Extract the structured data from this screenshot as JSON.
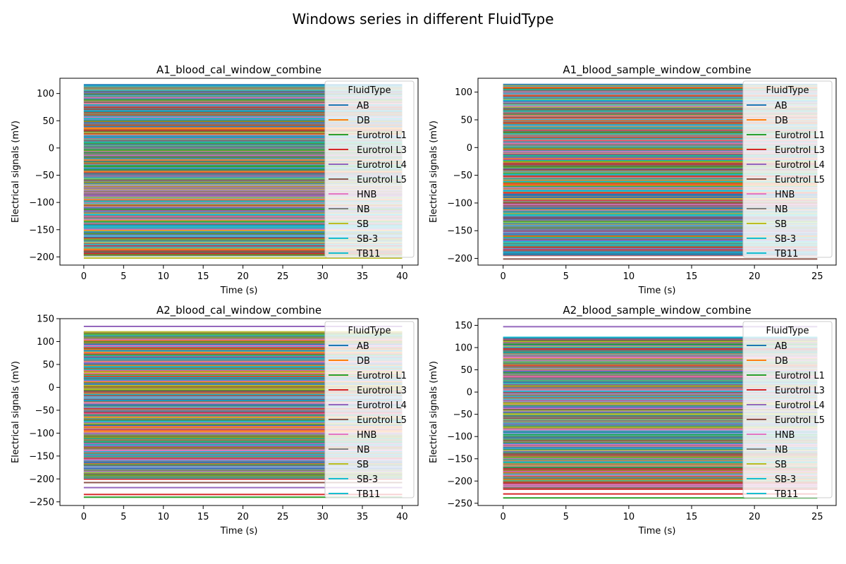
{
  "figure": {
    "suptitle": "Windows series in different FluidType"
  },
  "legend_title": "FluidType",
  "fluid_types": [
    {
      "name": "AB",
      "color": "#1f77b4"
    },
    {
      "name": "DB",
      "color": "#ff7f0e"
    },
    {
      "name": "Eurotrol L1",
      "color": "#2ca02c"
    },
    {
      "name": "Eurotrol L3",
      "color": "#d62728"
    },
    {
      "name": "Eurotrol L4",
      "color": "#9467bd"
    },
    {
      "name": "Eurotrol L5",
      "color": "#8c564b"
    },
    {
      "name": "HNB",
      "color": "#e377c2"
    },
    {
      "name": "NB",
      "color": "#7f7f7f"
    },
    {
      "name": "SB",
      "color": "#bcbd22"
    },
    {
      "name": "SB-3",
      "color": "#17becf"
    },
    {
      "name": "TB11",
      "color": "#17becf"
    }
  ],
  "chart_data": [
    {
      "type": "line",
      "title": "A1_blood_cal_window_combine",
      "xlabel": "Time (s)",
      "ylabel": "Electrical signals (mV)",
      "xlim": [
        -3,
        42
      ],
      "ylim": [
        -215,
        128
      ],
      "xticks": [
        0,
        5,
        10,
        15,
        20,
        25,
        30,
        35,
        40
      ],
      "yticks": [
        -200,
        -150,
        -100,
        -50,
        0,
        50,
        100
      ],
      "x_range": [
        0,
        40
      ],
      "band_range": [
        -198,
        116
      ],
      "outliers": [
        {
          "y": -202,
          "type_index": 8
        },
        {
          "y": -190,
          "type_index": 5
        },
        {
          "y": -186,
          "type_index": 1
        }
      ],
      "legend_position": "upper right"
    },
    {
      "type": "line",
      "title": "A1_blood_sample_window_combine",
      "xlabel": "Time (s)",
      "ylabel": "Electrical signals (mV)",
      "xlim": [
        -2,
        26.5
      ],
      "ylim": [
        -212,
        125
      ],
      "xticks": [
        0,
        5,
        10,
        15,
        20,
        25
      ],
      "yticks": [
        -200,
        -150,
        -100,
        -50,
        0,
        50,
        100
      ],
      "x_range": [
        0,
        25
      ],
      "band_range": [
        -195,
        114
      ],
      "outliers": [
        {
          "y": -201,
          "type_index": 5
        },
        {
          "y": -192,
          "type_index": 0
        }
      ],
      "legend_position": "upper right"
    },
    {
      "type": "line",
      "title": "A2_blood_cal_window_combine",
      "xlabel": "Time (s)",
      "ylabel": "Electrical signals (mV)",
      "xlim": [
        -3,
        42
      ],
      "ylim": [
        -258,
        150
      ],
      "xticks": [
        0,
        5,
        10,
        15,
        20,
        25,
        30,
        35,
        40
      ],
      "yticks": [
        -250,
        -200,
        -150,
        -100,
        -50,
        0,
        50,
        100,
        150
      ],
      "x_range": [
        0,
        40
      ],
      "band_range": [
        -200,
        122
      ],
      "outliers": [
        {
          "y": 133,
          "type_index": 4
        },
        {
          "y": -240,
          "type_index": 2
        },
        {
          "y": -234,
          "type_index": 3
        },
        {
          "y": -219,
          "type_index": 4
        },
        {
          "y": -208,
          "type_index": 5
        }
      ],
      "legend_position": "upper right"
    },
    {
      "type": "line",
      "title": "A2_blood_sample_window_combine",
      "xlabel": "Time (s)",
      "ylabel": "Electrical signals (mV)",
      "xlim": [
        -2,
        26.5
      ],
      "ylim": [
        -255,
        165
      ],
      "xticks": [
        0,
        5,
        10,
        15,
        20,
        25
      ],
      "yticks": [
        -250,
        -200,
        -150,
        -100,
        -50,
        0,
        50,
        100,
        150
      ],
      "x_range": [
        0,
        25
      ],
      "band_range": [
        -218,
        124
      ],
      "outliers": [
        {
          "y": 147,
          "type_index": 4
        },
        {
          "y": -238,
          "type_index": 2
        },
        {
          "y": -229,
          "type_index": 3
        }
      ],
      "legend_position": "upper right"
    }
  ]
}
